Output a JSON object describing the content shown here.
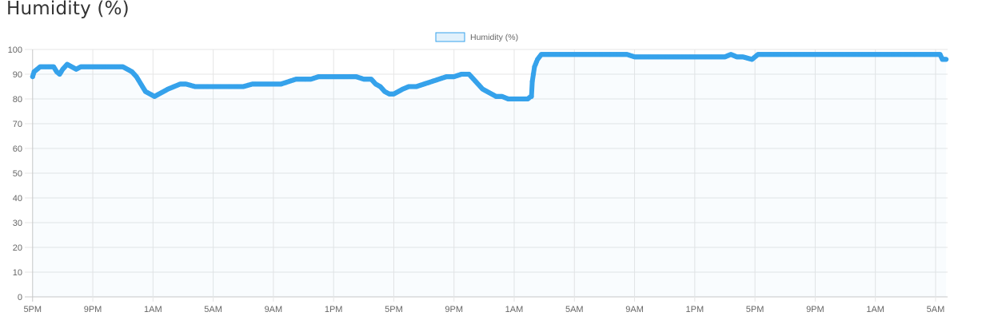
{
  "page": {
    "title": "Humidity (%)"
  },
  "colors": {
    "line": "#36a2eb",
    "fill": "rgba(54,162,235,0.15)",
    "grid": "#e6e6e6",
    "axis": "#c8c8c8",
    "text": "#666666"
  },
  "chart_data": {
    "type": "line",
    "title": "",
    "xlabel": "",
    "ylabel": "",
    "ylim": [
      0,
      100
    ],
    "yticks": [
      0,
      10,
      20,
      30,
      40,
      50,
      60,
      70,
      80,
      90,
      100
    ],
    "x_unit": "hours since first tick (5PM)",
    "xlim": [
      -0.2,
      60.8
    ],
    "x_ticks": [
      {
        "x": 0,
        "label": "5PM"
      },
      {
        "x": 4,
        "label": "9PM"
      },
      {
        "x": 8,
        "label": "1AM"
      },
      {
        "x": 12,
        "label": "5AM"
      },
      {
        "x": 16,
        "label": "9AM"
      },
      {
        "x": 20,
        "label": "1PM"
      },
      {
        "x": 24,
        "label": "5PM"
      },
      {
        "x": 28,
        "label": "9PM"
      },
      {
        "x": 32,
        "label": "1AM"
      },
      {
        "x": 36,
        "label": "5AM"
      },
      {
        "x": 40,
        "label": "9AM"
      },
      {
        "x": 44,
        "label": "1PM"
      },
      {
        "x": 48,
        "label": "5PM"
      },
      {
        "x": 52,
        "label": "9PM"
      },
      {
        "x": 56,
        "label": "1AM"
      },
      {
        "x": 60,
        "label": "5AM"
      }
    ],
    "grid": true,
    "legend": "top-center",
    "series": [
      {
        "name": "Humidity (%)",
        "points": [
          [
            0.0,
            89
          ],
          [
            0.1,
            91
          ],
          [
            0.3,
            92
          ],
          [
            0.5,
            93
          ],
          [
            1.0,
            93
          ],
          [
            1.4,
            93
          ],
          [
            1.6,
            91
          ],
          [
            1.8,
            90
          ],
          [
            2.0,
            92
          ],
          [
            2.3,
            94
          ],
          [
            2.6,
            93
          ],
          [
            2.9,
            92
          ],
          [
            3.2,
            93
          ],
          [
            4.0,
            93
          ],
          [
            5.0,
            93
          ],
          [
            6.0,
            93
          ],
          [
            6.3,
            92
          ],
          [
            6.6,
            91
          ],
          [
            6.9,
            89
          ],
          [
            7.1,
            87
          ],
          [
            7.3,
            85
          ],
          [
            7.5,
            83
          ],
          [
            7.8,
            82
          ],
          [
            8.1,
            81
          ],
          [
            8.4,
            82
          ],
          [
            8.7,
            83
          ],
          [
            9.0,
            84
          ],
          [
            9.4,
            85
          ],
          [
            9.8,
            86
          ],
          [
            10.2,
            86
          ],
          [
            10.8,
            85
          ],
          [
            11.5,
            85
          ],
          [
            12.0,
            85
          ],
          [
            13.0,
            85
          ],
          [
            14.0,
            85
          ],
          [
            14.6,
            86
          ],
          [
            15.0,
            86
          ],
          [
            16.0,
            86
          ],
          [
            16.5,
            86
          ],
          [
            17.0,
            87
          ],
          [
            17.5,
            88
          ],
          [
            18.0,
            88
          ],
          [
            18.5,
            88
          ],
          [
            19.0,
            89
          ],
          [
            20.0,
            89
          ],
          [
            21.0,
            89
          ],
          [
            21.5,
            89
          ],
          [
            22.0,
            88
          ],
          [
            22.5,
            88
          ],
          [
            22.8,
            86
          ],
          [
            23.1,
            85
          ],
          [
            23.4,
            83
          ],
          [
            23.7,
            82
          ],
          [
            24.0,
            82
          ],
          [
            24.3,
            83
          ],
          [
            24.6,
            84
          ],
          [
            25.0,
            85
          ],
          [
            25.5,
            85
          ],
          [
            26.0,
            86
          ],
          [
            26.5,
            87
          ],
          [
            27.0,
            88
          ],
          [
            27.5,
            89
          ],
          [
            28.0,
            89
          ],
          [
            28.5,
            90
          ],
          [
            29.0,
            90
          ],
          [
            29.3,
            88
          ],
          [
            29.6,
            86
          ],
          [
            29.9,
            84
          ],
          [
            30.2,
            83
          ],
          [
            30.5,
            82
          ],
          [
            30.8,
            81
          ],
          [
            31.2,
            81
          ],
          [
            31.6,
            80
          ],
          [
            32.0,
            80
          ],
          [
            32.5,
            80
          ],
          [
            32.9,
            80
          ],
          [
            33.1,
            81
          ],
          [
            33.15,
            81
          ],
          [
            33.2,
            87
          ],
          [
            33.35,
            93
          ],
          [
            33.55,
            96
          ],
          [
            33.8,
            98
          ],
          [
            34.5,
            98
          ],
          [
            36.0,
            98
          ],
          [
            38.0,
            98
          ],
          [
            39.5,
            98
          ],
          [
            40.0,
            97
          ],
          [
            41.0,
            97
          ],
          [
            42.0,
            97
          ],
          [
            43.0,
            97
          ],
          [
            44.0,
            97
          ],
          [
            44.5,
            97
          ],
          [
            45.0,
            97
          ],
          [
            45.5,
            97
          ],
          [
            46.0,
            97
          ],
          [
            46.4,
            98
          ],
          [
            46.8,
            97
          ],
          [
            47.2,
            97
          ],
          [
            47.8,
            96
          ],
          [
            48.0,
            97
          ],
          [
            48.2,
            98
          ],
          [
            50.0,
            98
          ],
          [
            52.0,
            98
          ],
          [
            54.0,
            98
          ],
          [
            56.0,
            98
          ],
          [
            58.0,
            98
          ],
          [
            60.0,
            98
          ],
          [
            60.3,
            98
          ],
          [
            60.45,
            96
          ],
          [
            60.7,
            96
          ]
        ]
      }
    ]
  }
}
